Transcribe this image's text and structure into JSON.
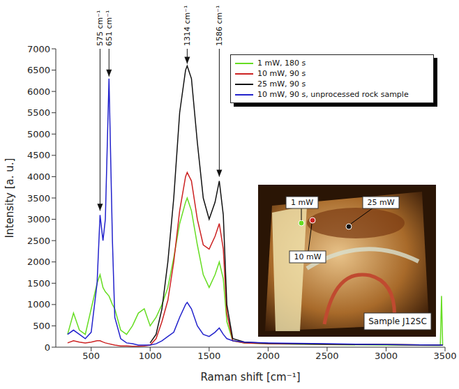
{
  "chart_data": {
    "type": "line",
    "grid": false,
    "x_label": "Raman shift [cm⁻¹]",
    "y_label": "Intensity [a. u.]",
    "xlim": [
      200,
      3500
    ],
    "xticks": [
      500,
      1000,
      1500,
      2000,
      2500,
      3000,
      3500
    ],
    "ylim": [
      0,
      7000
    ],
    "yticks": [
      0,
      500,
      1000,
      1500,
      2000,
      2500,
      3000,
      3500,
      4000,
      4500,
      5000,
      5500,
      6000,
      6500,
      7000
    ],
    "legend": "upper right",
    "x": [
      300,
      350,
      400,
      450,
      500,
      550,
      575,
      600,
      620,
      651,
      680,
      700,
      750,
      800,
      850,
      900,
      950,
      1000,
      1050,
      1100,
      1150,
      1200,
      1250,
      1300,
      1314,
      1350,
      1400,
      1450,
      1500,
      1550,
      1586,
      1620,
      1650,
      1700,
      1800,
      2000,
      2500,
      3000,
      3450,
      3460,
      3470,
      3480
    ],
    "series": [
      {
        "name": "1 mW, 180 s",
        "color": "#66dd22",
        "values": [
          300,
          800,
          400,
          300,
          900,
          1500,
          1700,
          1400,
          1300,
          1200,
          1000,
          900,
          400,
          300,
          500,
          800,
          900,
          500,
          700,
          1000,
          1400,
          2100,
          2900,
          3400,
          3500,
          3200,
          2400,
          1700,
          1400,
          1700,
          2000,
          1600,
          600,
          150,
          100,
          80,
          60,
          50,
          40,
          40,
          1200,
          40
        ]
      },
      {
        "name": "10 mW, 90 s",
        "color": "#cc2222",
        "values": [
          100,
          150,
          120,
          100,
          120,
          150,
          150,
          120,
          100,
          80,
          60,
          50,
          30,
          30,
          20,
          20,
          30,
          50,
          200,
          600,
          1100,
          2000,
          3200,
          4000,
          4100,
          3900,
          3000,
          2400,
          2300,
          2600,
          2900,
          2300,
          800,
          150,
          100,
          80,
          70,
          60,
          50,
          50,
          50,
          50
        ]
      },
      {
        "name": "25 mW, 90 s",
        "color": "#111111",
        "values": [
          null,
          null,
          null,
          null,
          null,
          null,
          null,
          null,
          null,
          null,
          null,
          null,
          null,
          null,
          null,
          null,
          null,
          100,
          300,
          900,
          2000,
          3500,
          5500,
          6500,
          6600,
          6300,
          4800,
          3500,
          3000,
          3400,
          3900,
          3100,
          1000,
          200,
          120,
          90,
          70,
          60,
          50,
          50,
          50,
          50
        ]
      },
      {
        "name": "10 mW, 90 s, unprocessed rock sample",
        "color": "#2222cc",
        "values": [
          300,
          400,
          300,
          200,
          350,
          1500,
          3100,
          2500,
          3000,
          6300,
          2500,
          700,
          200,
          100,
          80,
          50,
          50,
          50,
          80,
          150,
          250,
          350,
          700,
          1000,
          1050,
          900,
          500,
          300,
          250,
          350,
          450,
          300,
          200,
          150,
          120,
          100,
          80,
          60,
          50,
          50,
          50,
          50
        ]
      }
    ],
    "annotations": [
      {
        "x": 575,
        "y": 3200,
        "text": "575 cm⁻¹"
      },
      {
        "x": 651,
        "y": 6350,
        "text": "651 cm⁻¹"
      },
      {
        "x": 1314,
        "y": 6650,
        "text": "1314 cm⁻¹"
      },
      {
        "x": 1586,
        "y": 4000,
        "text": "1586 cm⁻¹"
      }
    ],
    "inset": {
      "title": "Sample J12SC",
      "points": [
        {
          "label": "1 mW",
          "color": "#66dd22"
        },
        {
          "label": "10 mW",
          "color": "#cc2222"
        },
        {
          "label": "25 mW",
          "color": "#111111"
        }
      ]
    }
  }
}
